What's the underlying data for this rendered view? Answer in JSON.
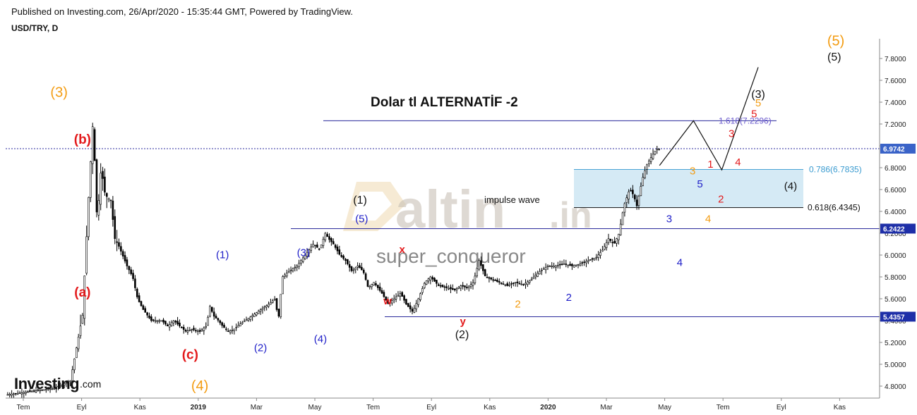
{
  "header": {
    "published": "Published on Investing.com, 26/Apr/2020 - 15:35:44 GMT, Powered by TradingView.",
    "symbol": "USD/TRY, D"
  },
  "colors": {
    "black": "#111111",
    "red": "#e31a1c",
    "blue": "#1f1fc8",
    "orange": "#f39c12",
    "navy_line": "#2a2a9c",
    "box_fill": "#d5eaf5",
    "box_stroke": "#4aa3d6",
    "fib_purple": "#6a5acd",
    "fib_cyan": "#3a9bd0",
    "candle": "#000000"
  },
  "chart_data": {
    "type": "candlestick",
    "title": "Dolar tl   ALTERNATİF -2",
    "symbol": "USD/TRY",
    "timeframe": "D",
    "ylim": [
      4.68,
      7.9
    ],
    "y_ticks": [
      "4.8000",
      "5.0000",
      "5.2000",
      "5.4000",
      "5.6000",
      "5.8000",
      "6.0000",
      "6.2000",
      "6.4000",
      "6.6000",
      "6.8000",
      "7.0000",
      "7.2000",
      "7.4000",
      "7.6000",
      "7.8000"
    ],
    "x_ticks": [
      "Tem",
      "Eyl",
      "Kas",
      "2019",
      "Mar",
      "May",
      "Tem",
      "Eyl",
      "Kas",
      "2020",
      "Mar",
      "May",
      "Tem",
      "Eyl",
      "Kas"
    ],
    "price_path": [
      [
        0,
        4.72
      ],
      [
        3,
        4.75
      ],
      [
        6,
        4.78
      ],
      [
        8,
        4.85
      ],
      [
        9.5,
        5.45
      ],
      [
        10.3,
        6.6
      ],
      [
        10.8,
        7.24
      ],
      [
        11.3,
        6.3
      ],
      [
        11.8,
        6.8
      ],
      [
        12.3,
        6.55
      ],
      [
        13,
        6.5
      ],
      [
        13.5,
        6.15
      ],
      [
        14,
        6.08
      ],
      [
        15,
        5.9
      ],
      [
        15.7,
        5.8
      ],
      [
        16.3,
        5.6
      ],
      [
        17,
        5.5
      ],
      [
        18,
        5.4
      ],
      [
        18.7,
        5.4
      ],
      [
        19.3,
        5.4
      ],
      [
        20,
        5.35
      ],
      [
        20.8,
        5.4
      ],
      [
        21.5,
        5.35
      ],
      [
        22.3,
        5.3
      ],
      [
        23,
        5.32
      ],
      [
        24,
        5.3
      ],
      [
        24.8,
        5.35
      ],
      [
        25.3,
        5.55
      ],
      [
        25.6,
        5.45
      ],
      [
        26.3,
        5.4
      ],
      [
        26.8,
        5.35
      ],
      [
        27.5,
        5.3
      ],
      [
        28.2,
        5.32
      ],
      [
        29,
        5.37
      ],
      [
        30,
        5.42
      ],
      [
        31.5,
        5.5
      ],
      [
        32.5,
        5.55
      ],
      [
        33.3,
        5.6
      ],
      [
        33.7,
        5.4
      ],
      [
        34.2,
        5.8
      ],
      [
        35,
        5.85
      ],
      [
        36,
        5.9
      ],
      [
        37,
        6.0
      ],
      [
        38,
        6.1
      ],
      [
        38.8,
        6.05
      ],
      [
        39.5,
        6.2
      ],
      [
        39.9,
        6.15
      ],
      [
        40.5,
        6.1
      ],
      [
        41.3,
        6.0
      ],
      [
        42,
        5.95
      ],
      [
        42.8,
        5.85
      ],
      [
        43.5,
        5.9
      ],
      [
        44.2,
        5.85
      ],
      [
        44.8,
        5.7
      ],
      [
        45.5,
        5.75
      ],
      [
        46.5,
        5.65
      ],
      [
        47.3,
        5.55
      ],
      [
        48,
        5.6
      ],
      [
        48.8,
        5.65
      ],
      [
        49.5,
        5.55
      ],
      [
        50.3,
        5.48
      ],
      [
        51,
        5.6
      ],
      [
        51.8,
        5.75
      ],
      [
        52.5,
        5.8
      ],
      [
        53.5,
        5.72
      ],
      [
        54.5,
        5.7
      ],
      [
        55.5,
        5.68
      ],
      [
        56.3,
        5.72
      ],
      [
        57,
        5.7
      ],
      [
        57.8,
        5.75
      ],
      [
        58.5,
        5.95
      ],
      [
        59.3,
        5.8
      ],
      [
        60,
        5.78
      ],
      [
        61,
        5.75
      ],
      [
        62,
        5.72
      ],
      [
        63,
        5.75
      ],
      [
        64,
        5.73
      ],
      [
        65,
        5.78
      ],
      [
        66,
        5.85
      ],
      [
        67,
        5.9
      ],
      [
        68,
        5.9
      ],
      [
        69,
        5.92
      ],
      [
        70,
        5.9
      ],
      [
        71,
        5.92
      ],
      [
        72,
        5.95
      ],
      [
        73,
        5.98
      ],
      [
        73.8,
        6.05
      ],
      [
        74.5,
        6.15
      ],
      [
        75.2,
        6.1
      ],
      [
        75.8,
        6.2
      ],
      [
        76.4,
        6.45
      ],
      [
        77.1,
        6.6
      ],
      [
        77.6,
        6.55
      ],
      [
        78,
        6.45
      ],
      [
        78.7,
        6.7
      ],
      [
        79.2,
        6.82
      ],
      [
        79.8,
        6.9
      ],
      [
        80.4,
        6.97
      ],
      [
        80.8,
        6.97
      ]
    ],
    "projection_path": [
      [
        80.8,
        6.82
      ],
      [
        85,
        7.23
      ],
      [
        88.5,
        6.78
      ],
      [
        93,
        7.72
      ]
    ],
    "levels": [
      {
        "value": 6.9742,
        "label": "6.9742",
        "style": "dotted"
      },
      {
        "value": 6.2422,
        "label": "6.2422",
        "style": "solid"
      },
      {
        "value": 5.4357,
        "label": "5.4357",
        "style": "solid"
      }
    ],
    "fibonacci": [
      {
        "ratio_label": "1.618(7.2296)",
        "value": 7.2296
      },
      {
        "ratio_label": "0.786(6.7835)",
        "value": 6.7835
      },
      {
        "ratio_label": "0.618(6.4345)",
        "value": 6.4345
      }
    ],
    "annotations": {
      "impulse": "impulse wave",
      "watermark_user": "super_conqueror",
      "watermark_brand": "altin",
      "watermark_tld": ".in",
      "investing_logo": "Investing",
      "investing_suffix": ".com"
    },
    "wave_labels": [
      {
        "text": "(3)",
        "color": "orange",
        "x": 6.6,
        "v": 7.45,
        "size": 20
      },
      {
        "text": "(b)",
        "color": "red",
        "x": 9.5,
        "v": 7.02,
        "size": 19,
        "bold": true
      },
      {
        "text": "(a)",
        "color": "red",
        "x": 9.5,
        "v": 5.62,
        "size": 19,
        "bold": true
      },
      {
        "text": "(c)",
        "color": "red",
        "x": 22.8,
        "v": 5.05,
        "size": 19,
        "bold": true
      },
      {
        "text": "(4)",
        "color": "orange",
        "x": 24.0,
        "v": 4.76,
        "size": 20
      },
      {
        "text": "(1)",
        "color": "blue",
        "x": 26.8,
        "v": 5.97,
        "size": 15
      },
      {
        "text": "(2)",
        "color": "blue",
        "x": 31.5,
        "v": 5.12,
        "size": 15
      },
      {
        "text": "(3)",
        "color": "blue",
        "x": 36.8,
        "v": 5.99,
        "size": 15
      },
      {
        "text": "(4)",
        "color": "blue",
        "x": 38.9,
        "v": 5.2,
        "size": 15
      },
      {
        "text": "(5)",
        "color": "blue",
        "x": 44.0,
        "v": 6.3,
        "size": 15
      },
      {
        "text": "(1)",
        "color": "black",
        "x": 43.8,
        "v": 6.47,
        "size": 16
      },
      {
        "text": "x",
        "color": "red",
        "x": 49.0,
        "v": 6.02,
        "size": 15,
        "bold": true
      },
      {
        "text": "w",
        "color": "red",
        "x": 47.2,
        "v": 5.55,
        "size": 15,
        "bold": true
      },
      {
        "text": "y",
        "color": "red",
        "x": 56.5,
        "v": 5.36,
        "size": 15,
        "bold": true
      },
      {
        "text": "(2)",
        "color": "black",
        "x": 56.4,
        "v": 5.24,
        "size": 16
      },
      {
        "text": "2",
        "color": "orange",
        "x": 63.3,
        "v": 5.52,
        "size": 15
      },
      {
        "text": "2",
        "color": "blue",
        "x": 69.6,
        "v": 5.58,
        "size": 15
      },
      {
        "text": "3",
        "color": "blue",
        "x": 82.0,
        "v": 6.3,
        "size": 15
      },
      {
        "text": "4",
        "color": "blue",
        "x": 83.3,
        "v": 5.9,
        "size": 15
      },
      {
        "text": "5",
        "color": "blue",
        "x": 85.8,
        "v": 6.62,
        "size": 15
      },
      {
        "text": "3",
        "color": "orange",
        "x": 84.9,
        "v": 6.74,
        "size": 15
      },
      {
        "text": "4",
        "color": "orange",
        "x": 86.8,
        "v": 6.3,
        "size": 15
      },
      {
        "text": "1",
        "color": "red",
        "x": 87.1,
        "v": 6.8,
        "size": 15
      },
      {
        "text": "2",
        "color": "red",
        "x": 88.4,
        "v": 6.48,
        "size": 15
      },
      {
        "text": "3",
        "color": "red",
        "x": 89.7,
        "v": 7.08,
        "size": 15
      },
      {
        "text": "4",
        "color": "red",
        "x": 90.5,
        "v": 6.82,
        "size": 15
      },
      {
        "text": "5",
        "color": "red",
        "x": 92.5,
        "v": 7.26,
        "size": 15
      },
      {
        "text": "5",
        "color": "orange",
        "x": 93.0,
        "v": 7.36,
        "size": 15
      },
      {
        "text": "(3)",
        "color": "black",
        "x": 93.0,
        "v": 7.44,
        "size": 16
      },
      {
        "text": "(4)",
        "color": "black",
        "x": 97.0,
        "v": 6.6,
        "size": 15
      },
      {
        "text": "(5)",
        "color": "black",
        "x": 102.4,
        "v": 7.78,
        "size": 16
      },
      {
        "text": "(5)",
        "color": "orange",
        "x": 102.6,
        "v": 7.92,
        "size": 20
      }
    ]
  }
}
